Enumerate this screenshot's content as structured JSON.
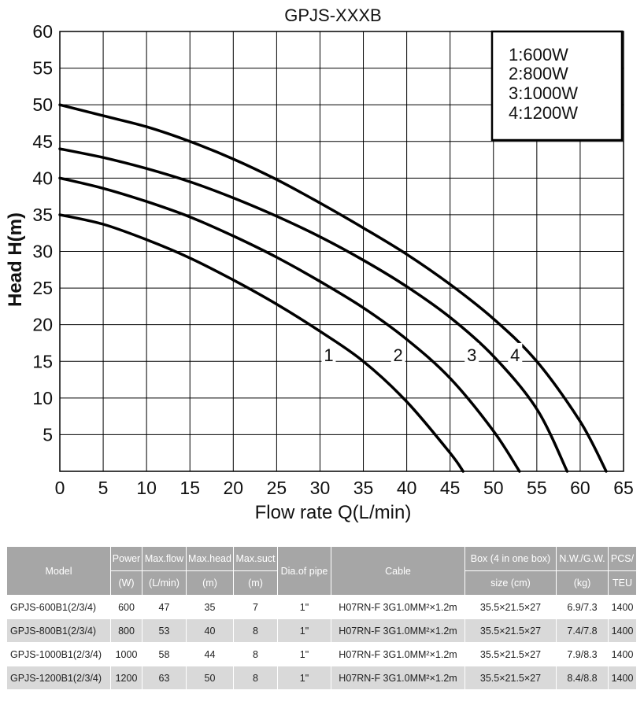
{
  "chart_data": {
    "type": "line",
    "title": "GPJS-XXXB",
    "xlabel": "Flow rate Q(L/min)",
    "ylabel": "Head H(m)",
    "xlim": [
      0,
      65
    ],
    "ylim": [
      0,
      60
    ],
    "x_ticks": [
      "0",
      "5",
      "10",
      "15",
      "20",
      "25",
      "30",
      "35",
      "40",
      "45",
      "50",
      "55",
      "60",
      "65"
    ],
    "y_ticks": [
      "5",
      "10",
      "15",
      "20",
      "25",
      "30",
      "35",
      "40",
      "45",
      "50",
      "55",
      "60"
    ],
    "grid": true,
    "legend_position": "top-right",
    "legend": [
      "1:600W",
      "2:800W",
      "3:1000W",
      "4:1200W"
    ],
    "series": [
      {
        "name": "1",
        "label_at": [
          31,
          16
        ],
        "x": [
          0,
          5,
          10,
          15,
          20,
          25,
          30,
          35,
          40,
          45,
          46.5
        ],
        "y": [
          35,
          33.7,
          31.6,
          29.1,
          26.1,
          22.8,
          19.1,
          15,
          9.5,
          2.5,
          0
        ]
      },
      {
        "name": "2",
        "label_at": [
          39,
          16
        ],
        "x": [
          0,
          5,
          10,
          15,
          20,
          25,
          30,
          35,
          40,
          45,
          50,
          53
        ],
        "y": [
          40,
          38.6,
          36.8,
          34.7,
          32.1,
          29.2,
          25.9,
          22.3,
          18,
          12.7,
          5.5,
          0
        ]
      },
      {
        "name": "3",
        "label_at": [
          47.5,
          16
        ],
        "x": [
          0,
          5,
          10,
          15,
          20,
          25,
          30,
          35,
          40,
          45,
          50,
          55,
          58.5
        ],
        "y": [
          44,
          42.8,
          41.3,
          39.5,
          37.3,
          34.8,
          32,
          28.8,
          25.2,
          21,
          15.7,
          8.5,
          0
        ]
      },
      {
        "name": "4",
        "label_at": [
          52.5,
          16
        ],
        "x": [
          0,
          5,
          10,
          15,
          20,
          25,
          30,
          35,
          40,
          45,
          50,
          55,
          60,
          63
        ],
        "y": [
          50,
          48.5,
          47,
          45,
          42.6,
          39.8,
          36.6,
          33.2,
          29.6,
          25.5,
          20.8,
          15,
          6.8,
          0
        ]
      }
    ]
  },
  "table": {
    "headers": [
      {
        "top": "Model",
        "bottom": ""
      },
      {
        "top": "Power",
        "bottom": "(W)"
      },
      {
        "top": "Max.flow",
        "bottom": "(L/min)"
      },
      {
        "top": "Max.head",
        "bottom": "(m)"
      },
      {
        "top": "Max.suct",
        "bottom": "(m)"
      },
      {
        "top": "Dia.of pipe",
        "bottom": ""
      },
      {
        "top": "Cable",
        "bottom": ""
      },
      {
        "top": "Box (4 in one box)",
        "bottom": "size (cm)"
      },
      {
        "top": "N.W./G.W.",
        "bottom": "(kg)"
      },
      {
        "top": "PCS/",
        "bottom": "TEU"
      }
    ],
    "rows": [
      [
        "GPJS-600B1(2/3/4)",
        "600",
        "47",
        "35",
        "7",
        "1\"",
        "H07RN-F 3G1.0MM²×1.2m",
        "35.5×21.5×27",
        "6.9/7.3",
        "1400"
      ],
      [
        "GPJS-800B1(2/3/4)",
        "800",
        "53",
        "40",
        "8",
        "1\"",
        "H07RN-F 3G1.0MM²×1.2m",
        "35.5×21.5×27",
        "7.4/7.8",
        "1400"
      ],
      [
        "GPJS-1000B1(2/3/4)",
        "1000",
        "58",
        "44",
        "8",
        "1\"",
        "H07RN-F 3G1.0MM²×1.2m",
        "35.5×21.5×27",
        "7.9/8.3",
        "1400"
      ],
      [
        "GPJS-1200B1(2/3/4)",
        "1200",
        "63",
        "50",
        "8",
        "1\"",
        "H07RN-F 3G1.0MM²×1.2m",
        "35.5×21.5×27",
        "8.4/8.8",
        "1400"
      ]
    ]
  }
}
